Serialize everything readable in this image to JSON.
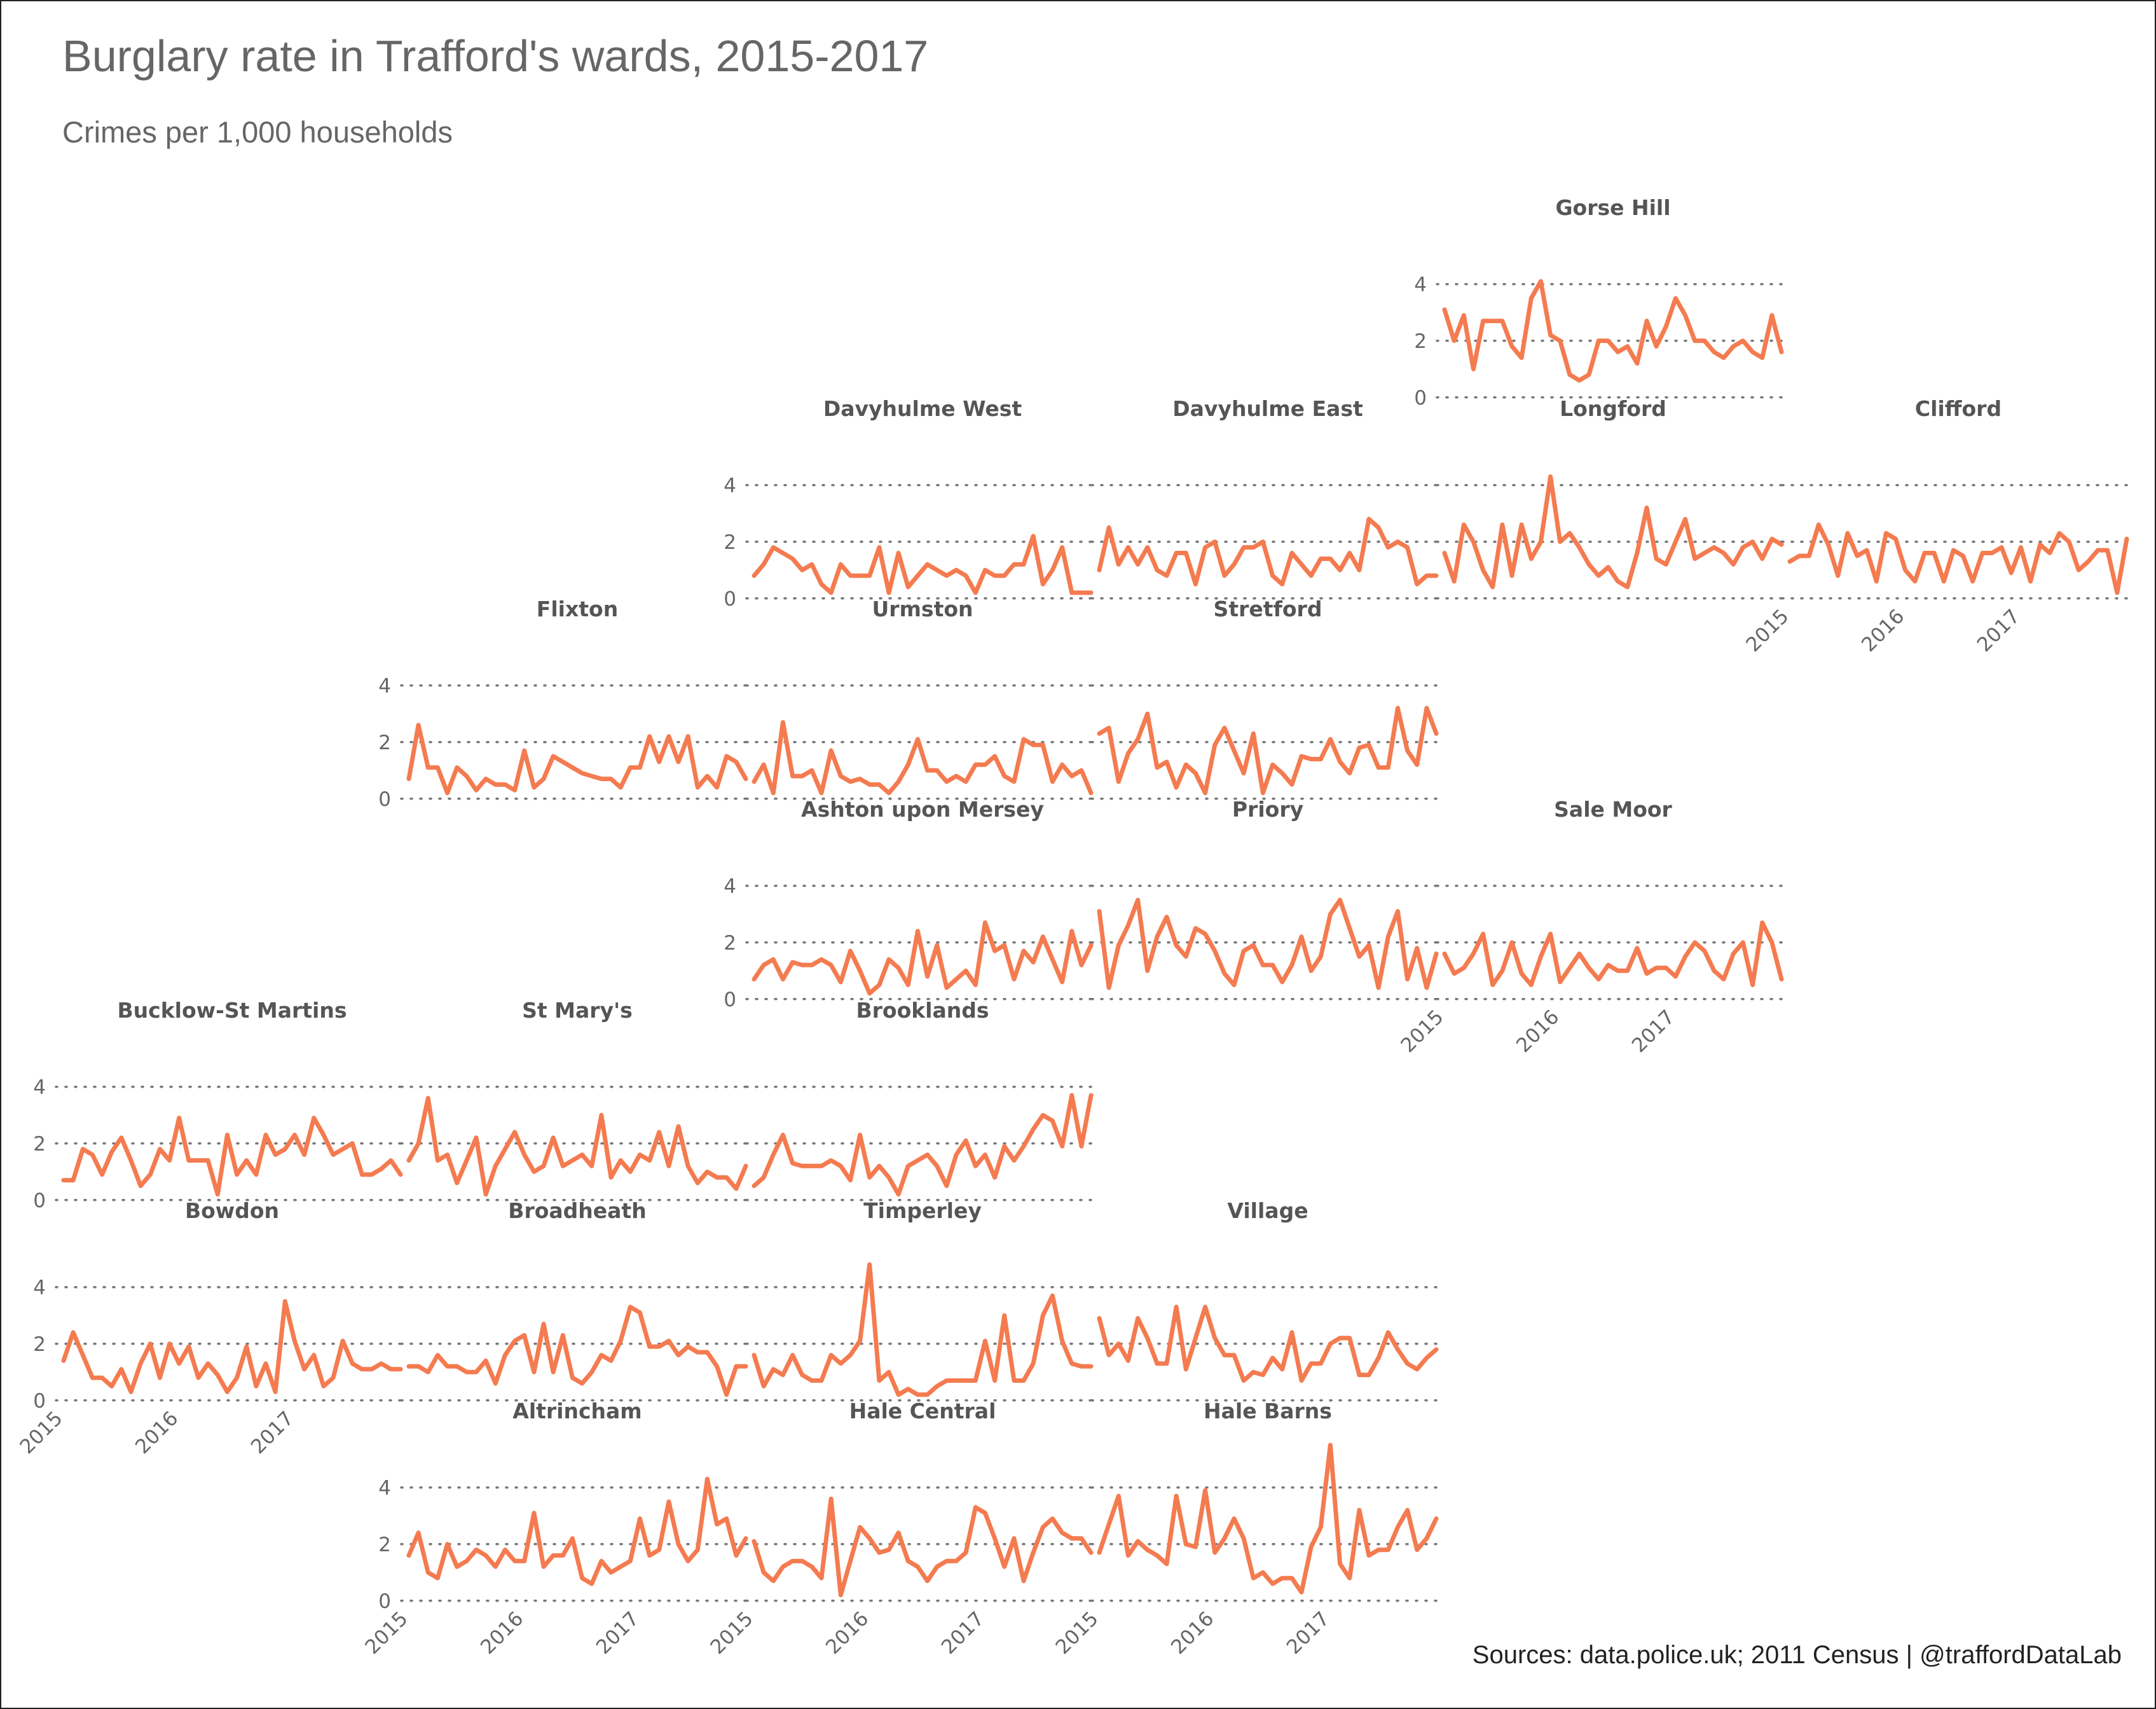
{
  "title": "Burglary rate in Trafford's wards, 2015-2017",
  "subtitle": "Crimes per 1,000 households",
  "caption": "Sources: data.police.uk; 2011 Census  |  @traffordDataLab",
  "colors": {
    "line": "#F47B50",
    "grid": "#777777",
    "text": "#666666",
    "panel_title": "#555555"
  },
  "chart_data": {
    "type": "line",
    "layout": "geofacet small multiples (grid of Trafford wards)",
    "title": "Burglary rate in Trafford's wards, 2015-2017",
    "subtitle": "Crimes per 1,000 households",
    "x": "monthly, Jan 2015 - Dec 2017",
    "x_ticks": [
      "2015",
      "2016",
      "2017"
    ],
    "y_ticks": [
      "0",
      "2",
      "4"
    ],
    "ylim": [
      0,
      5.5
    ],
    "grid": "horizontal dotted lines at 0, 2, 4",
    "series": [
      {
        "name": "Gorse Hill",
        "row": 0,
        "col": 4,
        "y_axis": true,
        "x_axis": false,
        "values": [
          3.1,
          2.0,
          2.9,
          1.0,
          2.7,
          2.7,
          2.7,
          1.8,
          1.4,
          3.5,
          4.1,
          2.2,
          2.0,
          0.8,
          0.6,
          0.8,
          2.0,
          2.0,
          1.6,
          1.8,
          1.2,
          2.7,
          1.8,
          2.5,
          3.5,
          2.9,
          2.0,
          2.0,
          1.6,
          1.4,
          1.8,
          2.0,
          1.6,
          1.4,
          2.9,
          1.6
        ]
      },
      {
        "name": "Davyhulme West",
        "row": 1,
        "col": 2,
        "y_axis": true,
        "x_axis": false,
        "values": [
          0.8,
          1.2,
          1.8,
          1.6,
          1.4,
          1.0,
          1.2,
          0.5,
          0.2,
          1.2,
          0.8,
          0.8,
          0.8,
          1.8,
          0.2,
          1.6,
          0.4,
          0.8,
          1.2,
          1.0,
          0.8,
          1.0,
          0.8,
          0.2,
          1.0,
          0.8,
          0.8,
          1.2,
          1.2,
          2.2,
          0.5,
          1.0,
          1.8,
          0.2,
          0.2,
          0.2
        ]
      },
      {
        "name": "Davyhulme East",
        "row": 1,
        "col": 3,
        "y_axis": false,
        "x_axis": false,
        "values": [
          1.0,
          2.5,
          1.2,
          1.8,
          1.2,
          1.8,
          1.0,
          0.8,
          1.6,
          1.6,
          0.5,
          1.8,
          2.0,
          0.8,
          1.2,
          1.8,
          1.8,
          2.0,
          0.8,
          0.5,
          1.6,
          1.2,
          0.8,
          1.4,
          1.4,
          1.0,
          1.6,
          1.0,
          2.8,
          2.5,
          1.8,
          2.0,
          1.8,
          0.5,
          0.8,
          0.8
        ]
      },
      {
        "name": "Longford",
        "row": 1,
        "col": 4,
        "y_axis": false,
        "x_axis": false,
        "values": [
          1.6,
          0.6,
          2.6,
          2.0,
          1.0,
          0.4,
          2.6,
          0.8,
          2.6,
          1.4,
          2.0,
          4.3,
          2.0,
          2.3,
          1.8,
          1.2,
          0.8,
          1.1,
          0.6,
          0.4,
          1.6,
          3.2,
          1.4,
          1.2,
          2.0,
          2.8,
          1.4,
          1.6,
          1.8,
          1.6,
          1.2,
          1.8,
          2.0,
          1.4,
          2.1,
          1.9
        ]
      },
      {
        "name": "Clifford",
        "row": 1,
        "col": 5,
        "y_axis": false,
        "x_axis": true,
        "values": [
          1.3,
          1.5,
          1.5,
          2.6,
          1.9,
          0.8,
          2.3,
          1.5,
          1.7,
          0.6,
          2.3,
          2.1,
          1.0,
          0.6,
          1.6,
          1.6,
          0.6,
          1.7,
          1.5,
          0.6,
          1.6,
          1.6,
          1.8,
          0.9,
          1.8,
          0.6,
          1.9,
          1.6,
          2.3,
          2.0,
          1.0,
          1.3,
          1.7,
          1.7,
          0.2,
          2.1
        ]
      },
      {
        "name": "Flixton",
        "row": 2,
        "col": 1,
        "y_axis": true,
        "x_axis": false,
        "values": [
          0.7,
          2.6,
          1.1,
          1.1,
          0.2,
          1.1,
          0.8,
          0.3,
          0.7,
          0.5,
          0.5,
          0.3,
          1.7,
          0.4,
          0.7,
          1.5,
          1.3,
          1.1,
          0.9,
          0.8,
          0.7,
          0.7,
          0.4,
          1.1,
          1.1,
          2.2,
          1.3,
          2.2,
          1.3,
          2.2,
          0.4,
          0.8,
          0.4,
          1.5,
          1.3,
          0.7
        ]
      },
      {
        "name": "Urmston",
        "row": 2,
        "col": 2,
        "y_axis": false,
        "x_axis": false,
        "values": [
          0.6,
          1.2,
          0.2,
          2.7,
          0.8,
          0.8,
          1.0,
          0.2,
          1.7,
          0.8,
          0.6,
          0.7,
          0.5,
          0.5,
          0.2,
          0.6,
          1.2,
          2.1,
          1.0,
          1.0,
          0.6,
          0.8,
          0.6,
          1.2,
          1.2,
          1.5,
          0.8,
          0.6,
          2.1,
          1.9,
          1.9,
          0.6,
          1.2,
          0.8,
          1.0,
          0.2
        ]
      },
      {
        "name": "Stretford",
        "row": 2,
        "col": 3,
        "y_axis": false,
        "x_axis": false,
        "values": [
          2.3,
          2.5,
          0.6,
          1.6,
          2.1,
          3.0,
          1.1,
          1.3,
          0.4,
          1.2,
          0.9,
          0.2,
          1.9,
          2.5,
          1.7,
          0.9,
          2.3,
          0.2,
          1.2,
          0.9,
          0.5,
          1.5,
          1.4,
          1.4,
          2.1,
          1.3,
          0.9,
          1.8,
          1.9,
          1.1,
          1.1,
          3.2,
          1.7,
          1.2,
          3.2,
          2.3
        ]
      },
      {
        "name": "Ashton upon Mersey",
        "row": 3,
        "col": 2,
        "y_axis": true,
        "x_axis": false,
        "values": [
          0.7,
          1.2,
          1.4,
          0.7,
          1.3,
          1.2,
          1.2,
          1.4,
          1.2,
          0.6,
          1.7,
          1.0,
          0.2,
          0.5,
          1.4,
          1.1,
          0.5,
          2.4,
          0.8,
          1.9,
          0.4,
          0.7,
          1.0,
          0.5,
          2.7,
          1.7,
          1.9,
          0.7,
          1.7,
          1.3,
          2.2,
          1.4,
          0.6,
          2.4,
          1.2,
          1.9
        ]
      },
      {
        "name": "Priory",
        "row": 3,
        "col": 3,
        "y_axis": false,
        "x_axis": false,
        "values": [
          3.1,
          0.4,
          1.9,
          2.6,
          3.5,
          1.0,
          2.2,
          2.9,
          1.9,
          1.5,
          2.5,
          2.3,
          1.7,
          0.9,
          0.5,
          1.7,
          1.9,
          1.2,
          1.2,
          0.6,
          1.2,
          2.2,
          1.0,
          1.5,
          3.0,
          3.5,
          2.5,
          1.5,
          1.9,
          0.4,
          2.2,
          3.1,
          0.7,
          1.8,
          0.4,
          1.6
        ]
      },
      {
        "name": "Sale Moor",
        "row": 3,
        "col": 4,
        "y_axis": false,
        "x_axis": true,
        "values": [
          1.6,
          0.9,
          1.1,
          1.6,
          2.3,
          0.5,
          1.0,
          2.0,
          0.9,
          0.5,
          1.5,
          2.3,
          0.6,
          1.1,
          1.6,
          1.1,
          0.7,
          1.2,
          1.0,
          1.0,
          1.8,
          0.9,
          1.1,
          1.1,
          0.8,
          1.5,
          2.0,
          1.7,
          1.0,
          0.7,
          1.6,
          2.0,
          0.5,
          2.7,
          2.0,
          0.7
        ]
      },
      {
        "name": "Bucklow-St Martins",
        "row": 4,
        "col": 0,
        "y_axis": true,
        "x_axis": false,
        "values": [
          0.7,
          0.7,
          1.8,
          1.6,
          0.9,
          1.7,
          2.2,
          1.4,
          0.5,
          0.9,
          1.8,
          1.4,
          2.9,
          1.4,
          1.4,
          1.4,
          0.2,
          2.3,
          0.9,
          1.4,
          0.9,
          2.3,
          1.6,
          1.8,
          2.3,
          1.6,
          2.9,
          2.3,
          1.6,
          1.8,
          2.0,
          0.9,
          0.9,
          1.1,
          1.4,
          0.9
        ]
      },
      {
        "name": "St Mary's",
        "row": 4,
        "col": 1,
        "y_axis": false,
        "x_axis": false,
        "values": [
          1.4,
          2.0,
          3.6,
          1.4,
          1.6,
          0.6,
          1.4,
          2.2,
          0.2,
          1.2,
          1.8,
          2.4,
          1.6,
          1.0,
          1.2,
          2.2,
          1.2,
          1.4,
          1.6,
          1.2,
          3.0,
          0.8,
          1.4,
          1.0,
          1.6,
          1.4,
          2.4,
          1.2,
          2.6,
          1.2,
          0.6,
          1.0,
          0.8,
          0.8,
          0.4,
          1.2
        ]
      },
      {
        "name": "Brooklands",
        "row": 4,
        "col": 2,
        "y_axis": false,
        "x_axis": false,
        "values": [
          0.5,
          0.8,
          1.6,
          2.3,
          1.3,
          1.2,
          1.2,
          1.2,
          1.4,
          1.2,
          0.7,
          2.3,
          0.8,
          1.2,
          0.8,
          0.2,
          1.2,
          1.4,
          1.6,
          1.2,
          0.5,
          1.6,
          2.1,
          1.2,
          1.6,
          0.8,
          1.9,
          1.4,
          1.9,
          2.5,
          3.0,
          2.8,
          1.9,
          3.7,
          1.9,
          3.7
        ]
      },
      {
        "name": "Bowdon",
        "row": 5,
        "col": 0,
        "y_axis": true,
        "x_axis": true,
        "values": [
          1.4,
          2.4,
          1.6,
          0.8,
          0.8,
          0.5,
          1.1,
          0.3,
          1.3,
          2.0,
          0.8,
          2.0,
          1.3,
          1.9,
          0.8,
          1.3,
          0.9,
          0.3,
          0.8,
          1.9,
          0.5,
          1.3,
          0.3,
          3.5,
          2.1,
          1.1,
          1.6,
          0.5,
          0.8,
          2.1,
          1.3,
          1.1,
          1.1,
          1.3,
          1.1,
          1.1
        ]
      },
      {
        "name": "Broadheath",
        "row": 5,
        "col": 1,
        "y_axis": false,
        "x_axis": false,
        "values": [
          1.2,
          1.2,
          1.0,
          1.6,
          1.2,
          1.2,
          1.0,
          1.0,
          1.4,
          0.6,
          1.6,
          2.1,
          2.3,
          1.0,
          2.7,
          1.0,
          2.3,
          0.8,
          0.6,
          1.0,
          1.6,
          1.4,
          2.1,
          3.3,
          3.1,
          1.9,
          1.9,
          2.1,
          1.6,
          1.9,
          1.7,
          1.7,
          1.2,
          0.2,
          1.2,
          1.2
        ]
      },
      {
        "name": "Timperley",
        "row": 5,
        "col": 2,
        "y_axis": false,
        "x_axis": false,
        "values": [
          1.6,
          0.5,
          1.1,
          0.9,
          1.6,
          0.9,
          0.7,
          0.7,
          1.6,
          1.3,
          1.6,
          2.1,
          4.8,
          0.7,
          1.0,
          0.2,
          0.4,
          0.2,
          0.2,
          0.5,
          0.7,
          0.7,
          0.7,
          0.7,
          2.1,
          0.7,
          3.0,
          0.7,
          0.7,
          1.3,
          3.0,
          3.7,
          2.1,
          1.3,
          1.2,
          1.2
        ]
      },
      {
        "name": "Village",
        "row": 5,
        "col": 3,
        "y_axis": false,
        "x_axis": false,
        "values": [
          2.9,
          1.6,
          2.0,
          1.4,
          2.9,
          2.2,
          1.3,
          1.3,
          3.3,
          1.1,
          2.2,
          3.3,
          2.2,
          1.6,
          1.6,
          0.7,
          1.0,
          0.9,
          1.5,
          1.1,
          2.4,
          0.7,
          1.3,
          1.3,
          2.0,
          2.2,
          2.2,
          0.9,
          0.9,
          1.5,
          2.4,
          1.8,
          1.3,
          1.1,
          1.5,
          1.8
        ]
      },
      {
        "name": "Altrincham",
        "row": 6,
        "col": 1,
        "y_axis": true,
        "x_axis": true,
        "values": [
          1.6,
          2.4,
          1.0,
          0.8,
          2.0,
          1.2,
          1.4,
          1.8,
          1.6,
          1.2,
          1.8,
          1.4,
          1.4,
          3.1,
          1.2,
          1.6,
          1.6,
          2.2,
          0.8,
          0.6,
          1.4,
          1.0,
          1.2,
          1.4,
          2.9,
          1.6,
          1.8,
          3.5,
          2.0,
          1.4,
          1.8,
          4.3,
          2.7,
          2.9,
          1.6,
          2.2
        ]
      },
      {
        "name": "Hale Central",
        "row": 6,
        "col": 2,
        "y_axis": false,
        "x_axis": true,
        "values": [
          2.1,
          1.0,
          0.7,
          1.2,
          1.4,
          1.4,
          1.2,
          0.8,
          3.6,
          0.2,
          1.4,
          2.6,
          2.2,
          1.7,
          1.8,
          2.4,
          1.4,
          1.2,
          0.7,
          1.2,
          1.4,
          1.4,
          1.7,
          3.3,
          3.1,
          2.2,
          1.2,
          2.2,
          0.7,
          1.7,
          2.6,
          2.9,
          2.4,
          2.2,
          2.2,
          1.7
        ]
      },
      {
        "name": "Hale Barns",
        "row": 6,
        "col": 3,
        "y_axis": false,
        "x_axis": true,
        "values": [
          1.7,
          2.7,
          3.7,
          1.6,
          2.1,
          1.8,
          1.6,
          1.3,
          3.7,
          2.0,
          1.9,
          3.9,
          1.7,
          2.2,
          2.9,
          2.2,
          0.8,
          1.0,
          0.6,
          0.8,
          0.8,
          0.3,
          1.9,
          2.6,
          5.5,
          1.3,
          0.8,
          3.2,
          1.6,
          1.8,
          1.8,
          2.6,
          3.2,
          1.8,
          2.2,
          2.9
        ]
      }
    ]
  }
}
